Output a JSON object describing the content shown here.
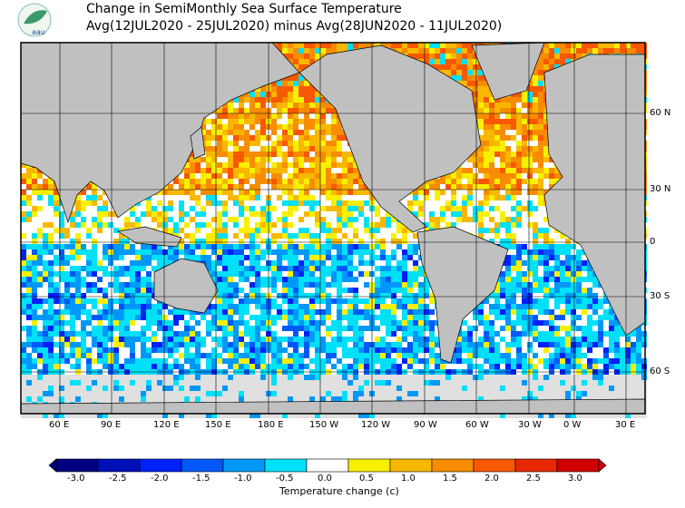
{
  "header": {
    "title": "Change in SemiMonthly Sea Surface Temperature",
    "subtitle": "Avg(12JUL2020 - 25JUL2020) minus Avg(28JUN2020 - 11JUL2020)",
    "logo_text": "aau"
  },
  "map": {
    "lon_labels": [
      "60 E",
      "90 E",
      "120 E",
      "150 E",
      "180 E",
      "150 W",
      "120 W",
      "90 W",
      "60 W",
      "30 W",
      "0 W",
      "30 E"
    ],
    "lat_labels": [
      "60 N",
      "30 N",
      "0",
      "30 S",
      "60 S"
    ],
    "land_color": "#c0c0c0",
    "nodata_color": "#e0e0e0"
  },
  "legend": {
    "title": "Temperature change  (c)",
    "ticks": [
      "-3.0",
      "-2.5",
      "-2.0",
      "-1.5",
      "-1.0",
      "-0.5",
      "0.0",
      "0.5",
      "1.0",
      "1.5",
      "2.0",
      "2.5",
      "3.0"
    ],
    "colors": [
      "#000080",
      "#0010b8",
      "#0020f8",
      "#0058f8",
      "#0098f8",
      "#00e0f8",
      "#ffffff",
      "#f8f000",
      "#f8b800",
      "#f88c00",
      "#f85800",
      "#e82800",
      "#d00000"
    ]
  }
}
